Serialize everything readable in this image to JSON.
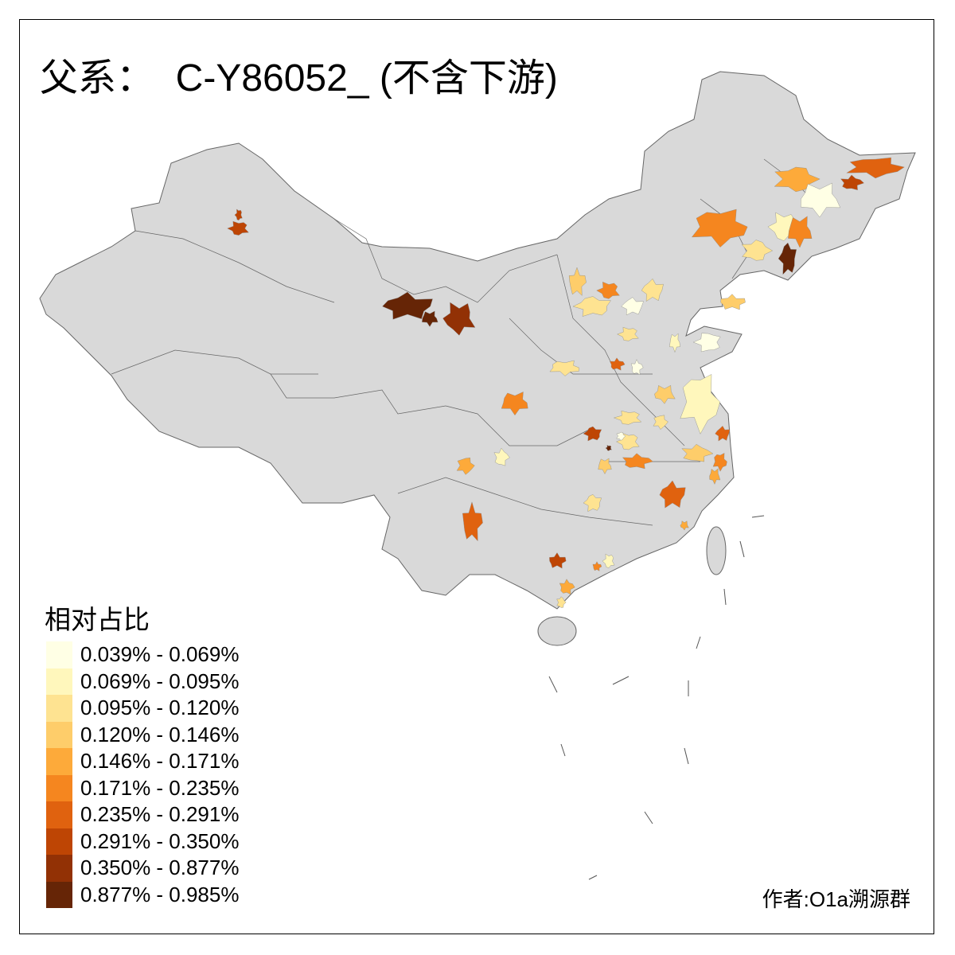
{
  "title": "父系：  C-Y86052_ (不含下游)",
  "legend": {
    "title": "相对占比",
    "items": [
      {
        "label": "0.039% - 0.069%",
        "color": "#FFFFE5"
      },
      {
        "label": "0.069% - 0.095%",
        "color": "#FFF7BC"
      },
      {
        "label": "0.095% - 0.120%",
        "color": "#FEE391"
      },
      {
        "label": "0.120% - 0.146%",
        "color": "#FECD6A"
      },
      {
        "label": "0.146% - 0.171%",
        "color": "#FDAA3A"
      },
      {
        "label": "0.171% - 0.235%",
        "color": "#F5861F"
      },
      {
        "label": "0.235% - 0.291%",
        "color": "#E0620F"
      },
      {
        "label": "0.291% - 0.350%",
        "color": "#BE4504"
      },
      {
        "label": "0.350% - 0.877%",
        "color": "#923105"
      },
      {
        "label": "0.877% - 0.985%",
        "color": "#662506"
      }
    ]
  },
  "map_colors": {
    "base_fill": "#D9D9D9",
    "border": "#666666"
  },
  "credit": "作者:O1a溯源群"
}
